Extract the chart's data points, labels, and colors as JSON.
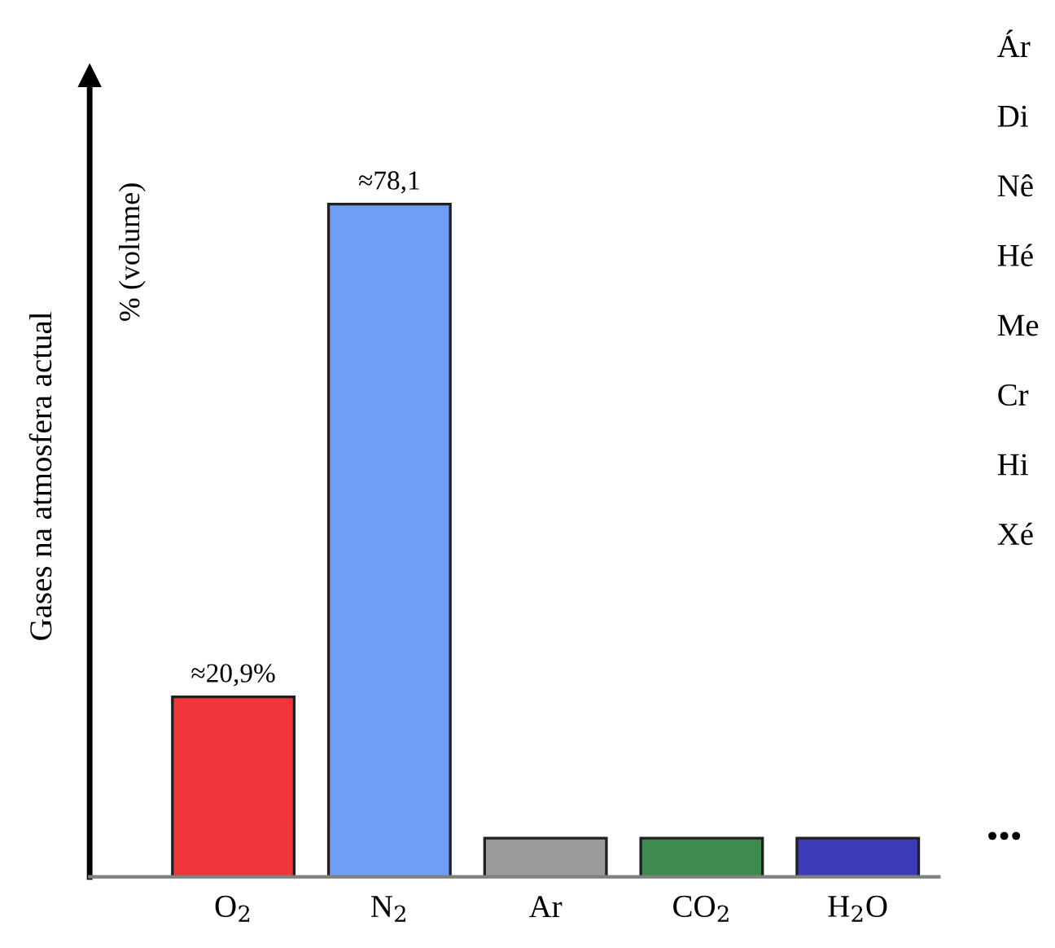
{
  "chart_data": {
    "type": "bar",
    "ylabel": "Gases na atmosfera actual",
    "categories": [
      "O$_{2}$",
      "N$_{2}$",
      "Ar",
      "CO$_{2}$",
      "H$_{2}$O"
    ],
    "values": [
      20.9,
      78.1,
      4.5,
      4.5,
      4.5
    ],
    "value_labels": [
      "≈20,9%",
      "≈78,1",
      null,
      null,
      null
    ],
    "colors": [
      "#f0363a",
      "#6f9ef8",
      "#9a9a9a",
      "#3f8a4f",
      "#3c3cb8"
    ],
    "ylim": [
      0,
      93
    ],
    "tick_labels": "x",
    "grid": false,
    "legend": false,
    "annotations": [
      "% (volume)",
      "Ár",
      "Di",
      "Nê",
      "Hé",
      "Me",
      "Cr",
      "Hi",
      "Xé",
      "•••"
    ]
  }
}
